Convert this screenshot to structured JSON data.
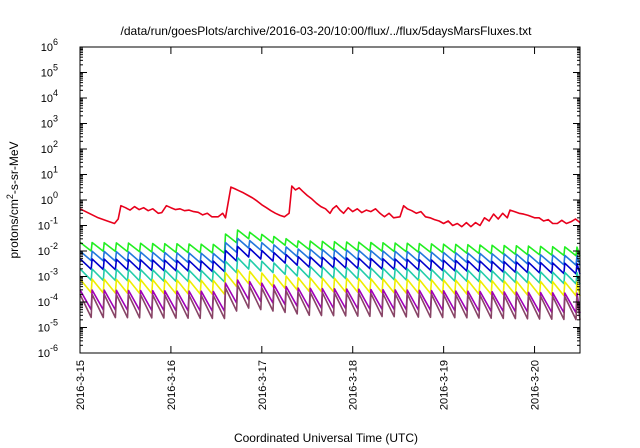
{
  "chart_data": {
    "type": "line",
    "title": "/data/run/goesPlots/archive/2016-03-20/10:00/flux/../flux/5daysMarsFluxes.txt",
    "xlabel": "Coordinated Universal Time (UTC)",
    "ylabel_parts": [
      "protons/cm",
      "2",
      "-s-sr-MeV"
    ],
    "yscale": "log",
    "ylim_exp": [
      -6,
      6
    ],
    "y_tick_exponents": [
      -6,
      -5,
      -4,
      -3,
      -2,
      -1,
      0,
      1,
      2,
      3,
      4,
      5,
      6
    ],
    "y_tick_base": "10",
    "xlim_days": [
      0,
      5.5
    ],
    "x_ticks": [
      {
        "day": 0,
        "label": "2016-3-15"
      },
      {
        "day": 1,
        "label": "2016-3-16"
      },
      {
        "day": 2,
        "label": "2016-3-17"
      },
      {
        "day": 3,
        "label": "2016-3-18"
      },
      {
        "day": 4,
        "label": "2016-3-19"
      },
      {
        "day": 5,
        "label": "2016-3-20"
      }
    ],
    "grid": false,
    "series": [
      {
        "color": "#e8001c",
        "sawtooth": false,
        "points": [
          [
            0,
            0.45
          ],
          [
            0.1,
            0.3
          ],
          [
            0.2,
            0.2
          ],
          [
            0.3,
            0.15
          ],
          [
            0.38,
            0.12
          ],
          [
            0.42,
            0.18
          ],
          [
            0.45,
            0.6
          ],
          [
            0.5,
            0.5
          ],
          [
            0.55,
            0.4
          ],
          [
            0.6,
            0.55
          ],
          [
            0.65,
            0.42
          ],
          [
            0.7,
            0.5
          ],
          [
            0.75,
            0.38
          ],
          [
            0.8,
            0.45
          ],
          [
            0.86,
            0.3
          ],
          [
            0.9,
            0.32
          ],
          [
            0.95,
            0.6
          ],
          [
            1.0,
            0.5
          ],
          [
            1.05,
            0.42
          ],
          [
            1.1,
            0.45
          ],
          [
            1.15,
            0.38
          ],
          [
            1.2,
            0.4
          ],
          [
            1.25,
            0.35
          ],
          [
            1.3,
            0.33
          ],
          [
            1.35,
            0.26
          ],
          [
            1.4,
            0.3
          ],
          [
            1.45,
            0.22
          ],
          [
            1.52,
            0.22
          ],
          [
            1.57,
            0.3
          ],
          [
            1.6,
            0.2
          ],
          [
            1.66,
            3.2
          ],
          [
            1.7,
            2.8
          ],
          [
            1.75,
            2.3
          ],
          [
            1.8,
            1.9
          ],
          [
            1.85,
            1.5
          ],
          [
            1.9,
            1.2
          ],
          [
            1.95,
            0.9
          ],
          [
            2.0,
            0.65
          ],
          [
            2.05,
            0.5
          ],
          [
            2.1,
            0.38
          ],
          [
            2.15,
            0.3
          ],
          [
            2.2,
            0.25
          ],
          [
            2.25,
            0.22
          ],
          [
            2.3,
            0.3
          ],
          [
            2.33,
            3.5
          ],
          [
            2.37,
            2.5
          ],
          [
            2.41,
            3.0
          ],
          [
            2.45,
            2.2
          ],
          [
            2.5,
            1.5
          ],
          [
            2.55,
            1.1
          ],
          [
            2.6,
            0.75
          ],
          [
            2.65,
            0.55
          ],
          [
            2.7,
            0.45
          ],
          [
            2.75,
            0.3
          ],
          [
            2.78,
            0.45
          ],
          [
            2.82,
            0.6
          ],
          [
            2.86,
            0.4
          ],
          [
            2.9,
            0.3
          ],
          [
            2.95,
            0.5
          ],
          [
            3.0,
            0.35
          ],
          [
            3.05,
            0.45
          ],
          [
            3.1,
            0.32
          ],
          [
            3.15,
            0.4
          ],
          [
            3.2,
            0.35
          ],
          [
            3.25,
            0.45
          ],
          [
            3.3,
            0.3
          ],
          [
            3.35,
            0.22
          ],
          [
            3.4,
            0.3
          ],
          [
            3.45,
            0.2
          ],
          [
            3.52,
            0.22
          ],
          [
            3.56,
            0.6
          ],
          [
            3.6,
            0.45
          ],
          [
            3.65,
            0.38
          ],
          [
            3.7,
            0.3
          ],
          [
            3.75,
            0.35
          ],
          [
            3.8,
            0.22
          ],
          [
            3.85,
            0.2
          ],
          [
            3.9,
            0.17
          ],
          [
            3.95,
            0.15
          ],
          [
            4.0,
            0.12
          ],
          [
            4.05,
            0.15
          ],
          [
            4.1,
            0.1
          ],
          [
            4.15,
            0.12
          ],
          [
            4.2,
            0.09
          ],
          [
            4.25,
            0.13
          ],
          [
            4.3,
            0.09
          ],
          [
            4.35,
            0.13
          ],
          [
            4.4,
            0.1
          ],
          [
            4.45,
            0.2
          ],
          [
            4.5,
            0.15
          ],
          [
            4.55,
            0.28
          ],
          [
            4.6,
            0.18
          ],
          [
            4.65,
            0.3
          ],
          [
            4.7,
            0.2
          ],
          [
            4.73,
            0.4
          ],
          [
            4.78,
            0.35
          ],
          [
            4.83,
            0.3
          ],
          [
            4.88,
            0.28
          ],
          [
            4.93,
            0.25
          ],
          [
            5.0,
            0.2
          ],
          [
            5.05,
            0.2
          ],
          [
            5.1,
            0.15
          ],
          [
            5.15,
            0.17
          ],
          [
            5.2,
            0.12
          ],
          [
            5.25,
            0.12
          ],
          [
            5.3,
            0.16
          ],
          [
            5.35,
            0.12
          ],
          [
            5.4,
            0.14
          ],
          [
            5.45,
            0.18
          ],
          [
            5.5,
            0.13
          ]
        ]
      },
      {
        "color": "#22ee22",
        "sawtooth": true,
        "base_levels": [
          [
            0,
            0.022
          ],
          [
            1.5,
            0.018
          ],
          [
            1.65,
            0.075
          ],
          [
            2.4,
            0.025
          ],
          [
            5.5,
            0.014
          ]
        ],
        "drop_factor": 2.2
      },
      {
        "color": "#2277dd",
        "sawtooth": true,
        "base_levels": [
          [
            0,
            0.01
          ],
          [
            1.5,
            0.008
          ],
          [
            1.65,
            0.035
          ],
          [
            2.4,
            0.012
          ],
          [
            5.5,
            0.0065
          ]
        ],
        "drop_factor": 2.4
      },
      {
        "color": "#0000cc",
        "sawtooth": true,
        "base_levels": [
          [
            0,
            0.005
          ],
          [
            1.5,
            0.004
          ],
          [
            1.65,
            0.017
          ],
          [
            2.4,
            0.006
          ],
          [
            5.5,
            0.0032
          ]
        ],
        "drop_factor": 2.6
      },
      {
        "color": "#22ccaa",
        "sawtooth": true,
        "base_levels": [
          [
            0,
            0.002
          ],
          [
            1.5,
            0.0017
          ],
          [
            1.65,
            0.006
          ],
          [
            2.4,
            0.0025
          ],
          [
            5.5,
            0.0014
          ]
        ],
        "drop_factor": 2.8
      },
      {
        "color": "#eeee00",
        "sawtooth": true,
        "base_levels": [
          [
            0,
            0.0008
          ],
          [
            1.5,
            0.0007
          ],
          [
            1.65,
            0.002
          ],
          [
            2.4,
            0.0009
          ],
          [
            5.5,
            0.0006
          ]
        ],
        "drop_factor": 3.5
      },
      {
        "color": "#a000b8",
        "sawtooth": true,
        "base_levels": [
          [
            0,
            0.0003
          ],
          [
            1.5,
            0.00026
          ],
          [
            1.65,
            0.0008
          ],
          [
            2.4,
            0.00035
          ],
          [
            5.5,
            0.00022
          ]
        ],
        "drop_factor": 6
      },
      {
        "color": "#884466",
        "sawtooth": true,
        "base_levels": [
          [
            0,
            0.0002
          ],
          [
            1.5,
            0.00018
          ],
          [
            1.65,
            0.0005
          ],
          [
            2.4,
            0.00024
          ],
          [
            5.5,
            0.00016
          ]
        ],
        "drop_factor": 8
      }
    ]
  }
}
